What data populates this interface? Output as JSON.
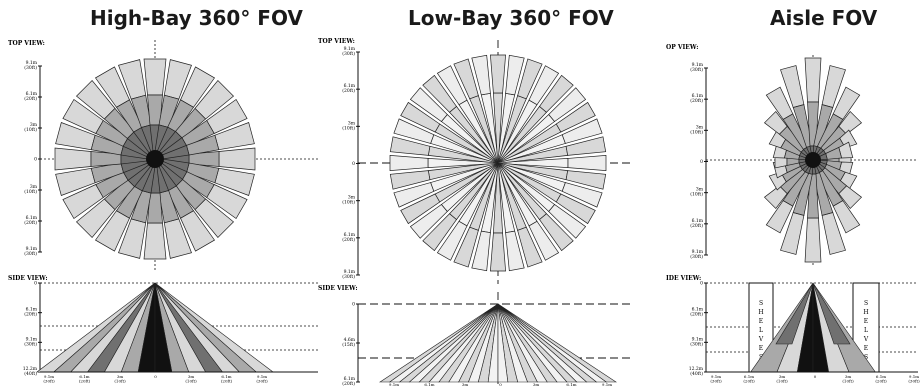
{
  "colors": {
    "dark": "#707070",
    "mid": "#a9a9a9",
    "light": "#d8d8d8",
    "black": "#111111",
    "edge": "#222222"
  },
  "panels": [
    {
      "title": "High-Bay 360° FOV",
      "top_label": "TOP VIEW:",
      "side_label": "SIDE VIEW:",
      "top_ticks": [
        "9.1m\n(30ft)",
        "6.1m\n(20ft)",
        "3m\n(10ft)",
        "0",
        "3m\n(10ft)",
        "6.1m\n(20ft)",
        "9.1m\n(30ft)"
      ],
      "side_ticks": [
        "0",
        "6.1m\n(20ft)",
        "9.1m\n(30ft)",
        "12.2m\n(40ft)"
      ],
      "bottom_ticks": [
        "9.1m\n(30ft)",
        "6.1m\n(20ft)",
        "3m\n(10ft)",
        "0",
        "3m\n(10ft)",
        "6.1m\n(20ft)",
        "9.1m\n(30ft)"
      ]
    },
    {
      "title": "Low-Bay 360° FOV",
      "top_label": "TOP VIEW:",
      "side_label": "SIDE VIEW:",
      "top_ticks": [
        "9.1m\n(30ft)",
        "6.1m\n(20ft)",
        "3m\n(10ft)",
        "0",
        "3m\n(10ft)",
        "6.1m\n(20ft)",
        "9.1m\n(30ft)"
      ],
      "side_ticks": [
        "0",
        "4.6m\n(15ft)",
        "6.1m\n(20ft)"
      ],
      "bottom_ticks": [
        "9.1m",
        "6.1m",
        "3m",
        "0",
        "3m",
        "6.1m",
        "9.1m"
      ]
    },
    {
      "title": "Aisle FOV",
      "top_label": "OP VIEW:",
      "side_label": "IDE VIEW:",
      "top_ticks": [
        "9.1m\n(30ft)",
        "6.1m\n(20ft)",
        "3m\n(10ft)",
        "0",
        "3m\n(10ft)",
        "6.1m\n(20ft)",
        "9.1m\n(30ft)"
      ],
      "side_ticks": [
        "0",
        "6.1m\n(20ft)",
        "9.1m\n(30ft)",
        "12.2m\n(40ft)"
      ],
      "bottom_ticks": [
        "9.1m\n(30ft)",
        "6.1m\n(20ft)",
        "3m\n(10ft)",
        "0",
        "3m\n(10ft)",
        "6.1m\n(20ft)",
        "9.1m\n(30ft)"
      ],
      "shelves_text": "SHELVES"
    }
  ]
}
